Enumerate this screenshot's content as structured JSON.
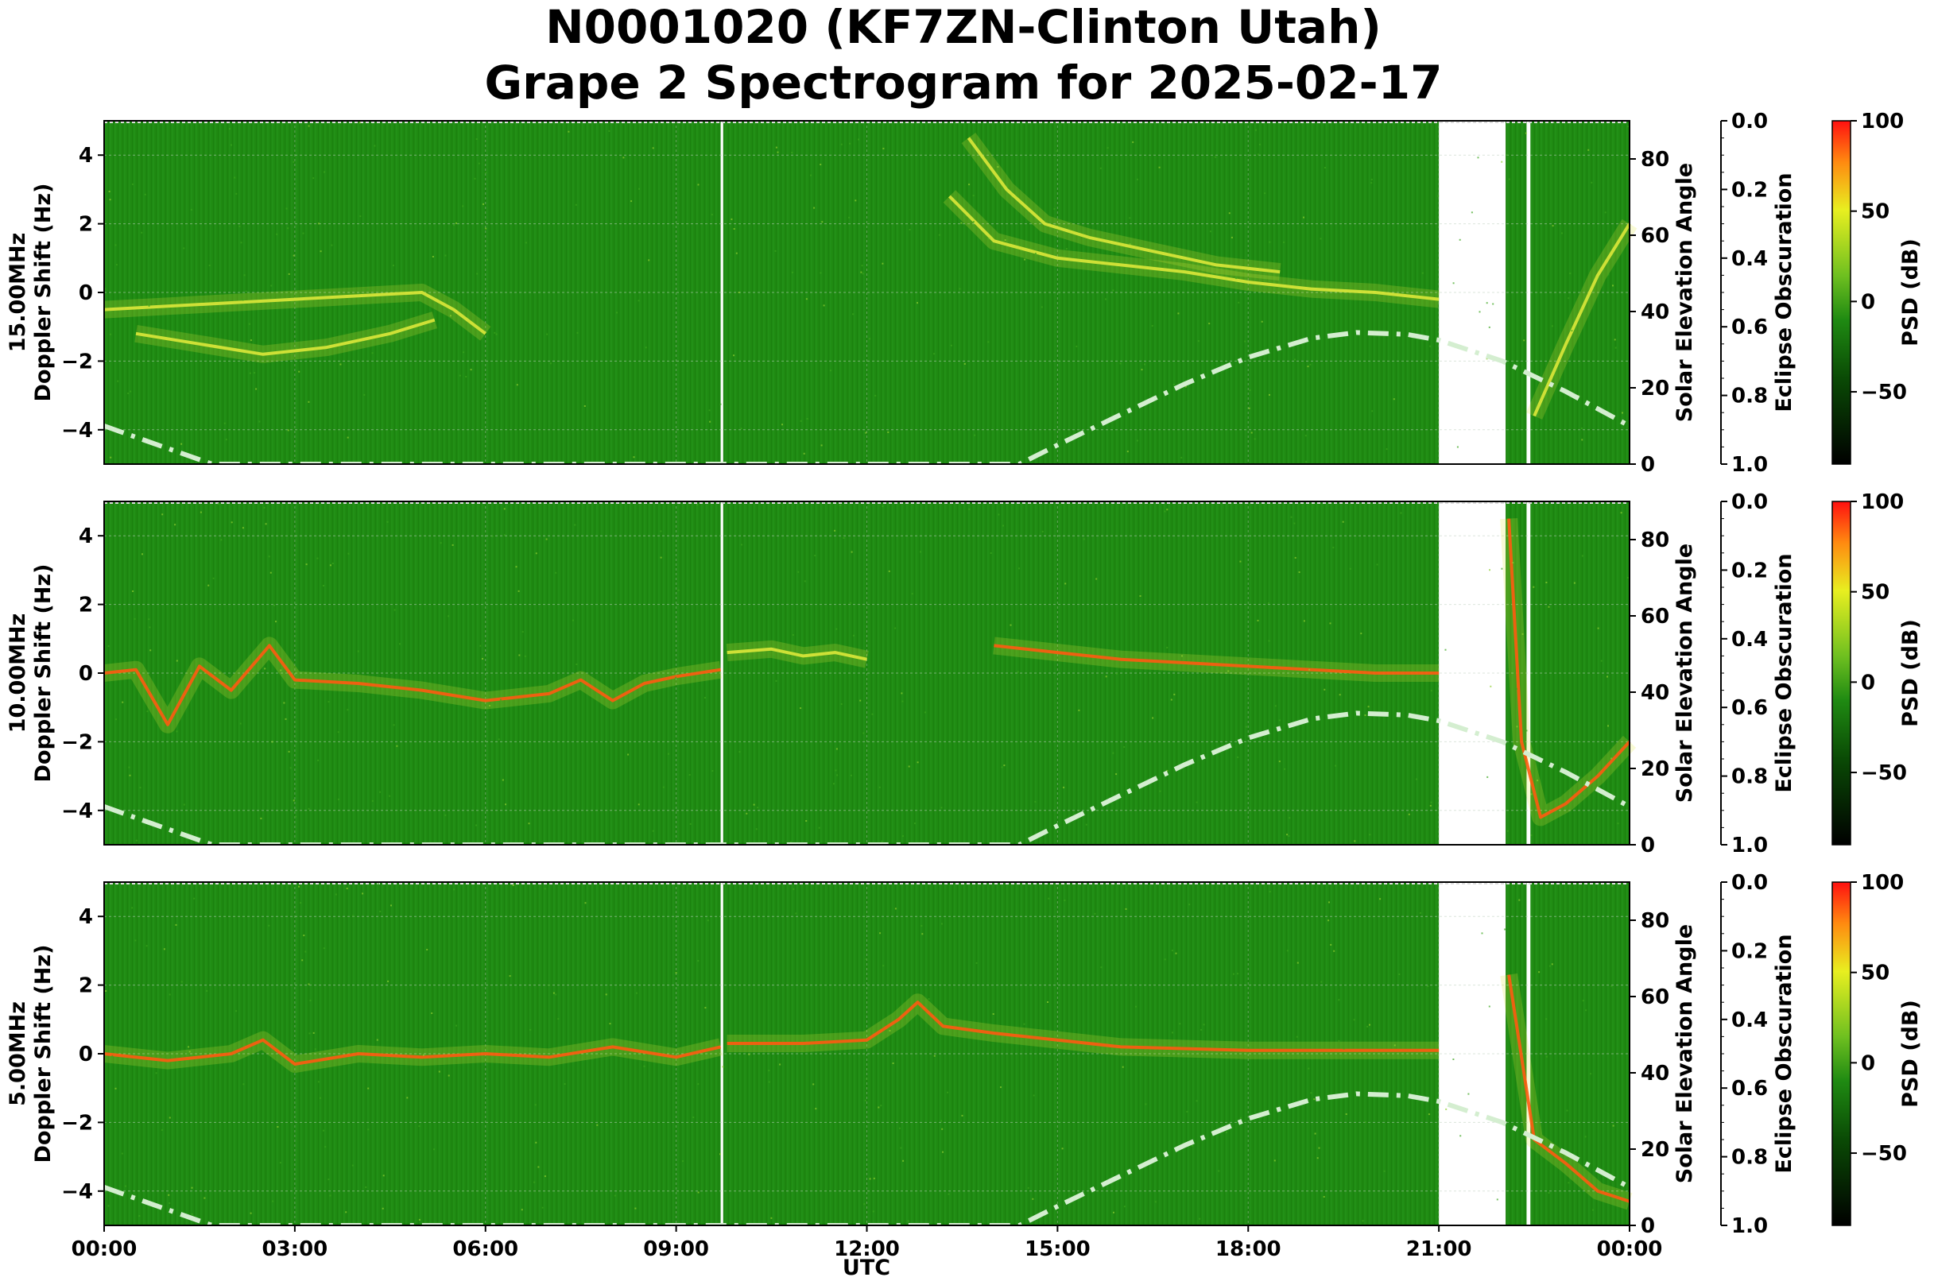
{
  "title_line1": "N0001020 (KF7ZN-Clinton Utah)",
  "title_line2": "Grape 2 Spectrogram for 2025-02-17",
  "colors": {
    "spectro_bg": "#1f8a12",
    "spectro_bg_dark": "#187a0c",
    "signal_yellow": "#dde83a",
    "signal_red": "#ff5a10",
    "sun_curve": "#d4eed0",
    "gap": "#ffffff"
  },
  "chart_data": {
    "type": "heatmap",
    "xlabel": "UTC",
    "x_ticks": [
      "00:00",
      "03:00",
      "06:00",
      "09:00",
      "12:00",
      "15:00",
      "18:00",
      "21:00",
      "00:00"
    ],
    "x_range_hours": [
      0,
      24
    ],
    "data_gaps_utc_hours": [
      [
        9.7,
        9.74
      ],
      [
        21.0,
        22.05
      ],
      [
        22.38,
        22.44
      ]
    ],
    "left_axis": {
      "range_hz": [
        -5,
        5
      ],
      "ticks": [
        "4",
        "2",
        "0",
        "−2",
        "−4"
      ],
      "tick_values": [
        4,
        2,
        0,
        -2,
        -4
      ]
    },
    "solar_elevation_axis": {
      "label": "Solar Elevation Angle",
      "range_deg": [
        0,
        90
      ],
      "ticks": [
        "80",
        "60",
        "40",
        "20",
        "0"
      ],
      "tick_values": [
        80,
        60,
        40,
        20,
        0
      ]
    },
    "eclipse_axis": {
      "label": "Eclipse Obscuration",
      "range": [
        1.0,
        0.0
      ],
      "ticks": [
        "0.0",
        "0.2",
        "0.4",
        "0.6",
        "0.8",
        "1.0"
      ],
      "tick_values": [
        0.0,
        0.2,
        0.4,
        0.6,
        0.8,
        1.0
      ]
    },
    "colorbar": {
      "label": "PSD (dB)",
      "range_db": [
        -90,
        100
      ],
      "ticks": [
        "100",
        "50",
        "0",
        "−50"
      ],
      "tick_values": [
        100,
        50,
        0,
        -50
      ]
    },
    "solar_elevation_curve": {
      "style": "dash-dot",
      "points_utc_deg": [
        [
          0,
          10
        ],
        [
          1.7,
          0
        ],
        [
          14.4,
          0
        ],
        [
          15,
          5
        ],
        [
          16,
          13
        ],
        [
          17,
          21
        ],
        [
          18,
          28
        ],
        [
          19,
          33
        ],
        [
          19.7,
          34.5
        ],
        [
          20.5,
          34
        ],
        [
          21,
          32.5
        ],
        [
          22,
          27
        ],
        [
          23,
          19
        ],
        [
          24,
          10
        ]
      ]
    },
    "panels": [
      {
        "id": "15mhz",
        "ylabel_line1": "15.00MHz",
        "ylabel_line2": "Doppler Shift (Hz)",
        "traces": [
          {
            "color": "yellow",
            "points_utc_hz": [
              [
                0,
                -0.5
              ],
              [
                1,
                -0.4
              ],
              [
                2,
                -0.3
              ],
              [
                3,
                -0.2
              ],
              [
                4,
                -0.1
              ],
              [
                5,
                0.0
              ],
              [
                5.5,
                -0.5
              ],
              [
                6,
                -1.2
              ]
            ]
          },
          {
            "color": "yellow",
            "points_utc_hz": [
              [
                0.5,
                -1.2
              ],
              [
                1.5,
                -1.5
              ],
              [
                2.5,
                -1.8
              ],
              [
                3.5,
                -1.6
              ],
              [
                4.5,
                -1.2
              ],
              [
                5.2,
                -0.8
              ]
            ]
          },
          {
            "color": "yellow",
            "points_utc_hz": [
              [
                13.3,
                2.8
              ],
              [
                14,
                1.5
              ],
              [
                15,
                1.0
              ],
              [
                16,
                0.8
              ],
              [
                17,
                0.6
              ],
              [
                18,
                0.3
              ],
              [
                19,
                0.1
              ],
              [
                20,
                0.0
              ],
              [
                21,
                -0.2
              ]
            ]
          },
          {
            "color": "yellow",
            "points_utc_hz": [
              [
                13.6,
                4.5
              ],
              [
                14.2,
                3.0
              ],
              [
                14.8,
                2.0
              ],
              [
                15.5,
                1.6
              ],
              [
                16.5,
                1.2
              ],
              [
                17.5,
                0.8
              ],
              [
                18.5,
                0.6
              ]
            ]
          },
          {
            "color": "yellow",
            "points_utc_hz": [
              [
                22.5,
                -3.6
              ],
              [
                23,
                -1.5
              ],
              [
                23.5,
                0.5
              ],
              [
                24,
                2.0
              ]
            ]
          }
        ]
      },
      {
        "id": "10mhz",
        "ylabel_line1": "10.00MHz",
        "ylabel_line2": "Doppler Shift (Hz)",
        "traces": [
          {
            "color": "red",
            "points_utc_hz": [
              [
                0,
                0.0
              ],
              [
                0.5,
                0.1
              ],
              [
                1,
                -1.5
              ],
              [
                1.5,
                0.2
              ],
              [
                2,
                -0.5
              ],
              [
                2.6,
                0.8
              ],
              [
                3,
                -0.2
              ],
              [
                4,
                -0.3
              ],
              [
                5,
                -0.5
              ],
              [
                6,
                -0.8
              ],
              [
                7,
                -0.6
              ],
              [
                7.5,
                -0.2
              ],
              [
                8,
                -0.8
              ],
              [
                8.5,
                -0.3
              ],
              [
                9,
                -0.1
              ],
              [
                9.7,
                0.1
              ]
            ]
          },
          {
            "color": "yellow",
            "points_utc_hz": [
              [
                9.8,
                0.6
              ],
              [
                10.5,
                0.7
              ],
              [
                11,
                0.5
              ],
              [
                11.5,
                0.6
              ],
              [
                12,
                0.4
              ]
            ]
          },
          {
            "color": "red",
            "points_utc_hz": [
              [
                14,
                0.8
              ],
              [
                15,
                0.6
              ],
              [
                16,
                0.4
              ],
              [
                17,
                0.3
              ],
              [
                18,
                0.2
              ],
              [
                19,
                0.1
              ],
              [
                20,
                0.0
              ],
              [
                21,
                0.0
              ]
            ]
          },
          {
            "color": "red",
            "points_utc_hz": [
              [
                22.1,
                4.5
              ],
              [
                22.3,
                -2.0
              ],
              [
                22.6,
                -4.2
              ],
              [
                23,
                -3.8
              ],
              [
                23.5,
                -3.0
              ],
              [
                24,
                -2.0
              ]
            ]
          }
        ]
      },
      {
        "id": "5mhz",
        "ylabel_line1": "5.00MHz",
        "ylabel_line2": "Doppler Shift (Hz)",
        "traces": [
          {
            "color": "red",
            "points_utc_hz": [
              [
                0,
                0.0
              ],
              [
                1,
                -0.2
              ],
              [
                2,
                0.0
              ],
              [
                2.5,
                0.4
              ],
              [
                3,
                -0.3
              ],
              [
                4,
                0.0
              ],
              [
                5,
                -0.1
              ],
              [
                6,
                0.0
              ],
              [
                7,
                -0.1
              ],
              [
                8,
                0.2
              ],
              [
                9,
                -0.1
              ],
              [
                9.7,
                0.2
              ]
            ]
          },
          {
            "color": "red",
            "points_utc_hz": [
              [
                9.8,
                0.3
              ],
              [
                11,
                0.3
              ],
              [
                12,
                0.4
              ],
              [
                12.5,
                1.0
              ],
              [
                12.8,
                1.5
              ],
              [
                13.2,
                0.8
              ],
              [
                14,
                0.6
              ],
              [
                15,
                0.4
              ],
              [
                16,
                0.2
              ],
              [
                18,
                0.1
              ],
              [
                21,
                0.1
              ]
            ]
          },
          {
            "color": "red",
            "points_utc_hz": [
              [
                22.1,
                2.3
              ],
              [
                22.5,
                -2.5
              ],
              [
                23,
                -3.2
              ],
              [
                23.5,
                -4.0
              ],
              [
                24,
                -4.3
              ]
            ]
          }
        ]
      }
    ]
  }
}
